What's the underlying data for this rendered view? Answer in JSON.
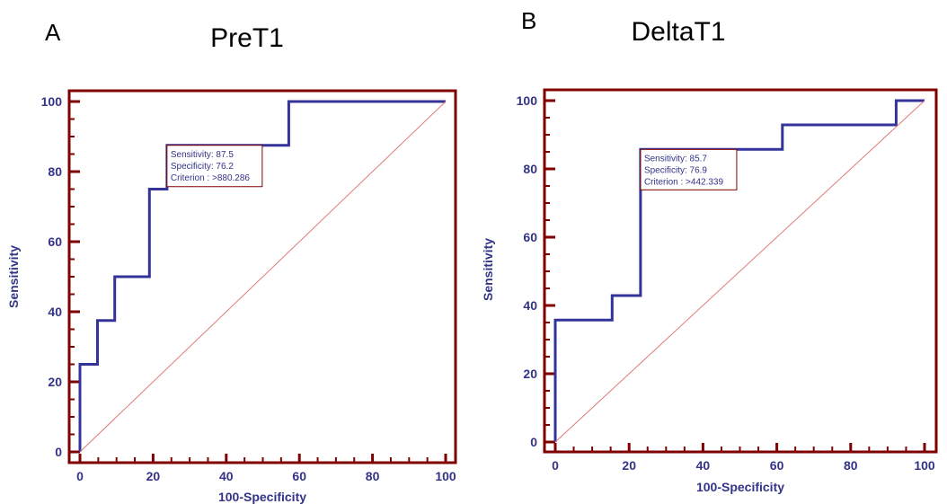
{
  "colors": {
    "curve": "#333399",
    "frame": "#800000",
    "diagonal": "#e07a7a"
  },
  "chart_data": [
    {
      "type": "line",
      "panel": "A",
      "title": "PreT1",
      "xlabel": "100-Specificity",
      "ylabel": "Sensitivity",
      "xlim": [
        0,
        100
      ],
      "ylim": [
        0,
        100
      ],
      "xticks": [
        0,
        20,
        40,
        60,
        80,
        100
      ],
      "yticks": [
        0,
        20,
        40,
        60,
        80,
        100
      ],
      "grid": false,
      "series": [
        {
          "name": "ROC",
          "style": "step",
          "x": [
            0,
            0,
            4.8,
            4.8,
            9.5,
            9.5,
            19.0,
            19.0,
            23.8,
            23.8,
            57.1,
            57.1,
            100
          ],
          "y": [
            0,
            25,
            25,
            37.5,
            37.5,
            50,
            50,
            75,
            75,
            87.5,
            87.5,
            100,
            100
          ]
        },
        {
          "name": "Reference",
          "style": "diagonal",
          "x": [
            0,
            100
          ],
          "y": [
            0,
            100
          ]
        }
      ],
      "annotation": {
        "x": 23.8,
        "y": 87.5,
        "lines": [
          "Sensitivity: 87.5",
          "Specificity: 76.2",
          "Criterion : >880.286"
        ]
      }
    },
    {
      "type": "line",
      "panel": "B",
      "title": "DeltaT1",
      "xlabel": "100-Specificity",
      "ylabel": "Sensitivity",
      "xlim": [
        0,
        100
      ],
      "ylim": [
        0,
        100
      ],
      "xticks": [
        0,
        20,
        40,
        60,
        80,
        100
      ],
      "yticks": [
        0,
        20,
        40,
        60,
        80,
        100
      ],
      "grid": false,
      "series": [
        {
          "name": "ROC",
          "style": "step",
          "x": [
            0,
            0,
            15.4,
            15.4,
            23.1,
            23.1,
            61.5,
            61.5,
            92.3,
            92.3,
            100
          ],
          "y": [
            0,
            35.7,
            35.7,
            42.9,
            42.9,
            85.7,
            85.7,
            92.9,
            92.9,
            100,
            100
          ]
        },
        {
          "name": "Reference",
          "style": "diagonal",
          "x": [
            0,
            100
          ],
          "y": [
            0,
            100
          ]
        }
      ],
      "annotation": {
        "x": 23.1,
        "y": 85.7,
        "lines": [
          "Sensitivity: 85.7",
          "Specificity: 76.9",
          "Criterion : >442.339"
        ]
      }
    }
  ]
}
